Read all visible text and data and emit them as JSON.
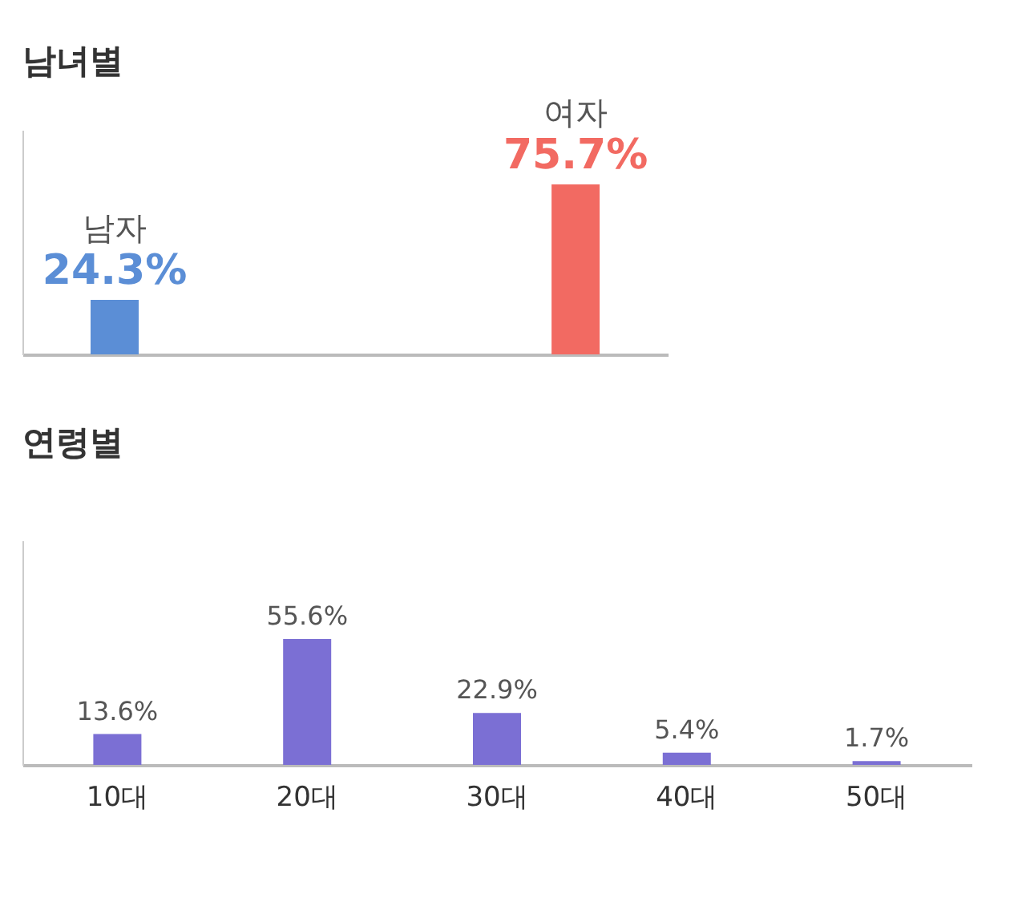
{
  "chart_data": [
    {
      "type": "bar",
      "title": "남녀별",
      "categories": [
        "남자",
        "여자"
      ],
      "values": [
        24.3,
        75.7
      ],
      "colors": [
        "#5b8ed6",
        "#f26a62"
      ],
      "value_labels": [
        "24.3%",
        "75.7%"
      ],
      "tick_labels": false
    },
    {
      "type": "bar",
      "title": "연령별",
      "categories": [
        "10대",
        "20대",
        "30대",
        "40대",
        "50대"
      ],
      "values": [
        13.6,
        55.6,
        22.9,
        5.4,
        1.7
      ],
      "color": "#7b6fd4",
      "value_labels": [
        "13.6%",
        "55.6%",
        "22.9%",
        "5.4%",
        "1.7%"
      ],
      "tick_labels": "x"
    }
  ]
}
